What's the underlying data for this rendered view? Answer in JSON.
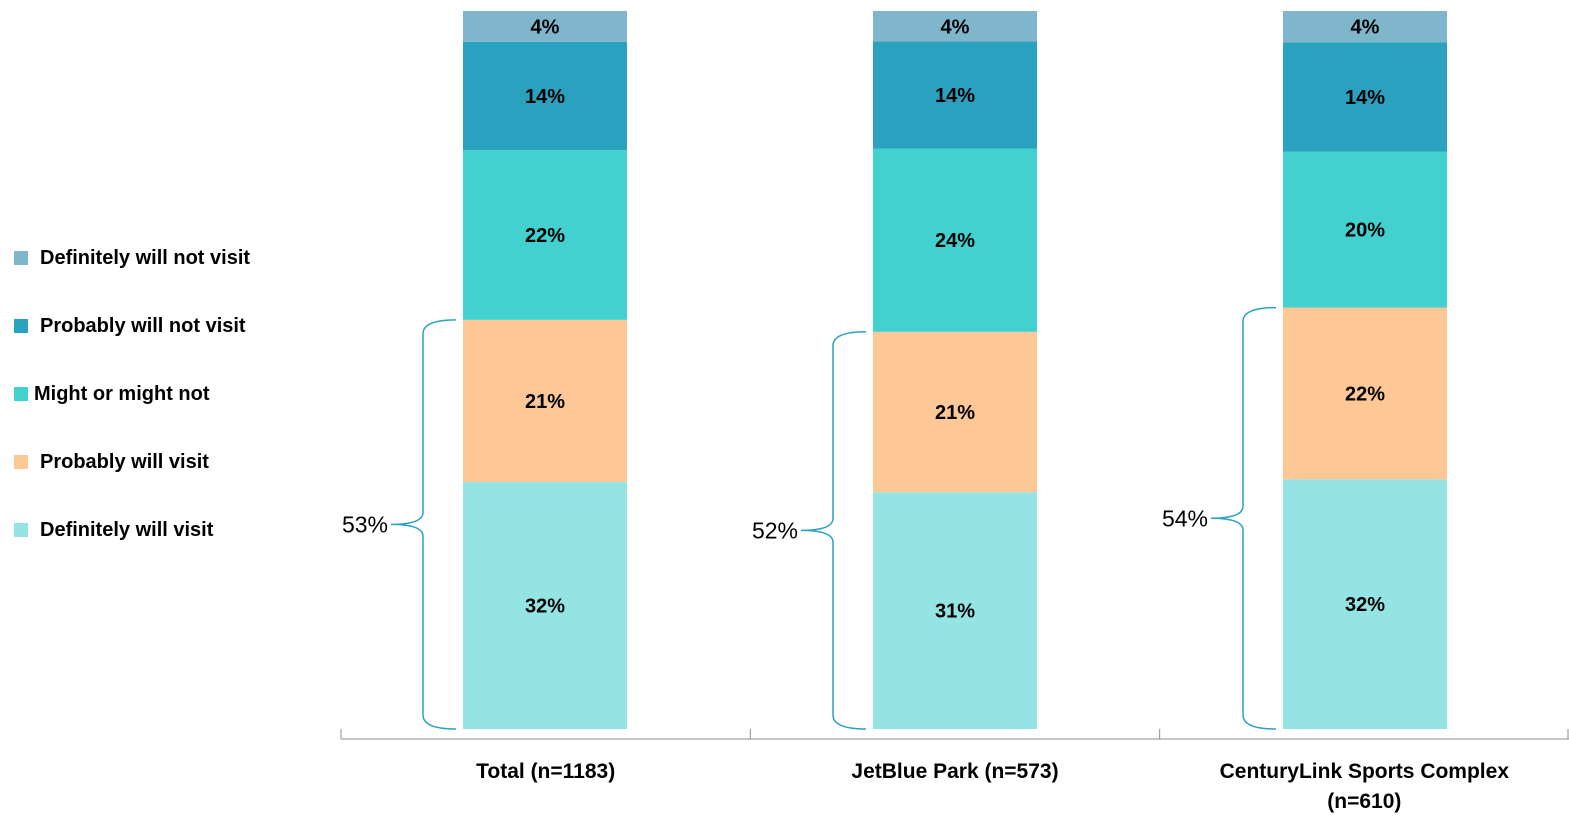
{
  "chart_data": {
    "type": "bar",
    "stacked": true,
    "categories": [
      "Total (n=1183)",
      "JetBlue Park (n=573)",
      "CenturyLink Sports Complex (n=610)"
    ],
    "category_lines": [
      [
        "Total (n=1183)"
      ],
      [
        "JetBlue Park (n=573)"
      ],
      [
        "CenturyLink Sports Complex",
        "(n=610)"
      ]
    ],
    "series": [
      {
        "name": "Definitely will visit",
        "color": "#93e4e3",
        "values": [
          32,
          31,
          32
        ]
      },
      {
        "name": "Probably will visit",
        "color": "#fdc896",
        "values": [
          21,
          21,
          22
        ]
      },
      {
        "name": "Might or might not",
        "color": "#42d1cf",
        "values": [
          22,
          24,
          20
        ]
      },
      {
        "name": "Probably will not visit",
        "color": "#2aa1bf",
        "values": [
          14,
          14,
          14
        ]
      },
      {
        "name": "Definitely will not visit",
        "color": "#7fb6cc",
        "values": [
          4,
          4,
          4
        ]
      }
    ],
    "value_labels": [
      [
        "32%",
        "21%",
        "22%",
        "14%",
        "4%"
      ],
      [
        "31%",
        "21%",
        "24%",
        "14%",
        "4%"
      ],
      [
        "32%",
        "22%",
        "20%",
        "14%",
        "4%"
      ]
    ],
    "bracket_labels": [
      "53%",
      "52%",
      "54%"
    ],
    "legend_order": [
      "Definitely will not visit",
      "Probably will not visit",
      "Might or might not",
      "Probably will visit",
      "Definitely will visit"
    ],
    "legend_position": "left",
    "bracket_color": "#2aa1bf",
    "grid": false
  }
}
